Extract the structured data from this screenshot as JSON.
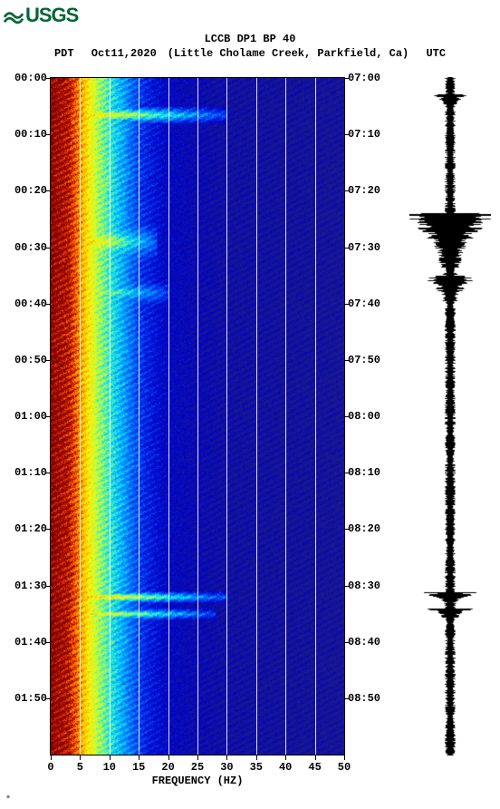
{
  "logo": {
    "text": "USGS",
    "color": "#006633"
  },
  "header": {
    "title_line1": "LCCB DP1 BP 40",
    "tz_left": "PDT",
    "date": "Oct11,2020",
    "location": "(Little Cholame Creek, Parkfield, Ca)",
    "tz_right": "UTC",
    "font_color": "#000000",
    "font_size_pt": 12
  },
  "spectrogram": {
    "type": "spectrogram",
    "xlim": [
      0,
      50
    ],
    "x_tick_step": 5,
    "x_ticks": [
      0,
      5,
      10,
      15,
      20,
      25,
      30,
      35,
      40,
      45,
      50
    ],
    "x_label": "FREQUENCY (HZ)",
    "y_duration_min": 120,
    "y_tick_step_min": 10,
    "y_labels_left": [
      "00:00",
      "00:10",
      "00:20",
      "00:30",
      "00:40",
      "00:50",
      "01:00",
      "01:10",
      "01:20",
      "01:30",
      "01:40",
      "01:50"
    ],
    "y_labels_right": [
      "07:00",
      "07:10",
      "07:20",
      "07:30",
      "07:40",
      "07:50",
      "08:00",
      "08:10",
      "08:20",
      "08:30",
      "08:40",
      "08:50"
    ],
    "gridline_x_positions": [
      5,
      10,
      15,
      20,
      25,
      30,
      35,
      40,
      45
    ],
    "gridline_color": "#ffffff",
    "colormap": {
      "stops": [
        [
          0.0,
          "#1a1a8a"
        ],
        [
          0.15,
          "#0000cc"
        ],
        [
          0.3,
          "#0055ff"
        ],
        [
          0.45,
          "#00e0ff"
        ],
        [
          0.6,
          "#ccff33"
        ],
        [
          0.72,
          "#ffee00"
        ],
        [
          0.84,
          "#ff8800"
        ],
        [
          0.92,
          "#dd2200"
        ],
        [
          1.0,
          "#7b0000"
        ]
      ]
    },
    "base_intensity_profile": [
      [
        0,
        1.0
      ],
      [
        3,
        0.95
      ],
      [
        5,
        0.82
      ],
      [
        8,
        0.58
      ],
      [
        12,
        0.4
      ],
      [
        16,
        0.22
      ],
      [
        20,
        0.12
      ],
      [
        30,
        0.05
      ],
      [
        50,
        0.02
      ]
    ],
    "events": [
      {
        "t_min": 5,
        "dur": 3,
        "freq_extent": 30,
        "strength": 0.9
      },
      {
        "t_min": 24,
        "dur": 10,
        "freq_extent": 18,
        "strength": 1.0
      },
      {
        "t_min": 35,
        "dur": 6,
        "freq_extent": 20,
        "strength": 0.85
      },
      {
        "t_min": 48,
        "dur": 3,
        "freq_extent": 14,
        "strength": 0.6
      },
      {
        "t_min": 91,
        "dur": 2,
        "freq_extent": 30,
        "strength": 0.95
      },
      {
        "t_min": 94,
        "dur": 2,
        "freq_extent": 28,
        "strength": 0.9
      },
      {
        "t_min": 99,
        "dur": 2,
        "freq_extent": 16,
        "strength": 0.65
      }
    ],
    "noise_seed": 42,
    "background_color": "#ffffff"
  },
  "seismogram": {
    "type": "waveform",
    "trace_color": "#000000",
    "base_amplitude": 0.1,
    "events": [
      {
        "t_min": 3,
        "amp": 0.35,
        "decay": 4
      },
      {
        "t_min": 24,
        "amp": 0.95,
        "decay": 14
      },
      {
        "t_min": 35,
        "amp": 0.55,
        "decay": 8
      },
      {
        "t_min": 91,
        "amp": 0.65,
        "decay": 3
      },
      {
        "t_min": 94,
        "amp": 0.55,
        "decay": 3
      }
    ]
  },
  "footnote": "*"
}
